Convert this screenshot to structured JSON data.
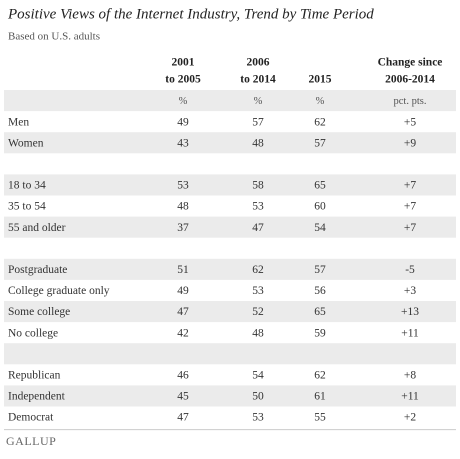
{
  "header": {
    "title": "Positive Views of the Internet Industry, Trend by Time Period",
    "subtitle": "Based on U.S. adults"
  },
  "table": {
    "columns": [
      [
        "2001",
        "to 2005"
      ],
      [
        "2006",
        "to 2014"
      ],
      [
        "2015"
      ],
      [
        "Change since",
        "2006-2014"
      ]
    ],
    "units": [
      "%",
      "%",
      "%",
      "pct. pts."
    ],
    "groups": [
      [
        {
          "label": "Men",
          "values": [
            "49",
            "57",
            "62",
            "+5"
          ]
        },
        {
          "label": "Women",
          "values": [
            "43",
            "48",
            "57",
            "+9"
          ]
        }
      ],
      [
        {
          "label": "18 to 34",
          "values": [
            "53",
            "58",
            "65",
            "+7"
          ]
        },
        {
          "label": "35 to 54",
          "values": [
            "48",
            "53",
            "60",
            "+7"
          ]
        },
        {
          "label": "55 and older",
          "values": [
            "37",
            "47",
            "54",
            "+7"
          ]
        }
      ],
      [
        {
          "label": "Postgraduate",
          "values": [
            "51",
            "62",
            "57",
            "-5"
          ]
        },
        {
          "label": "College graduate only",
          "values": [
            "49",
            "53",
            "56",
            "+3"
          ]
        },
        {
          "label": "Some college",
          "values": [
            "47",
            "52",
            "65",
            "+13"
          ]
        },
        {
          "label": "No college",
          "values": [
            "42",
            "48",
            "59",
            "+11"
          ]
        }
      ],
      [
        {
          "label": "Republican",
          "values": [
            "46",
            "54",
            "62",
            "+8"
          ]
        },
        {
          "label": "Independent",
          "values": [
            "45",
            "50",
            "61",
            "+11"
          ]
        },
        {
          "label": "Democrat",
          "values": [
            "47",
            "53",
            "55",
            "+2"
          ]
        }
      ]
    ]
  },
  "footer": {
    "logo": "GALLUP"
  }
}
